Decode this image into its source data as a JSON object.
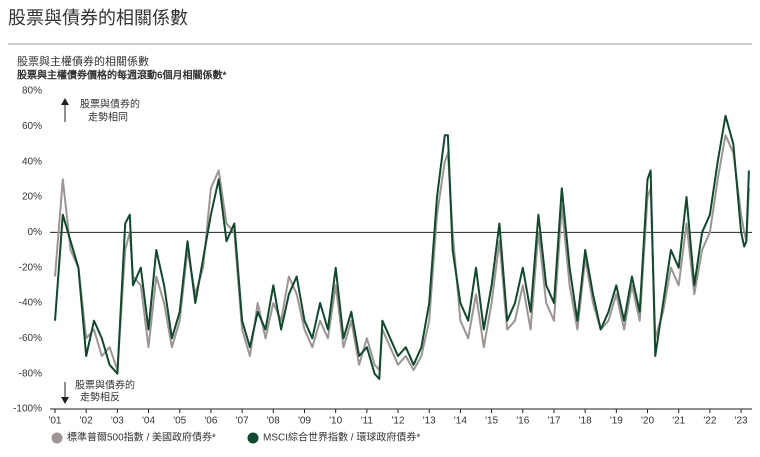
{
  "chart_data": {
    "type": "line",
    "title": "股票與債券的相關係數",
    "subtitle": "股票與主權債券的相關係數",
    "subtitle2": "股票與主權債券價格的每週滾動6個月相關係數*",
    "annotations": [
      "股票與債券的",
      "走勢相同",
      "股票與債券的",
      "走勢相反"
    ],
    "x": [
      2001,
      2001.25,
      2001.5,
      2001.75,
      2002,
      2002.25,
      2002.5,
      2002.75,
      2003,
      2003.25,
      2003.4,
      2003.5,
      2003.75,
      2004,
      2004.25,
      2004.5,
      2004.75,
      2005,
      2005.25,
      2005.5,
      2005.75,
      2006,
      2006.25,
      2006.5,
      2006.75,
      2007,
      2007.25,
      2007.5,
      2007.75,
      2008,
      2008.25,
      2008.5,
      2008.75,
      2009,
      2009.25,
      2009.5,
      2009.75,
      2010,
      2010.25,
      2010.5,
      2010.75,
      2011,
      2011.25,
      2011.4,
      2011.5,
      2011.75,
      2012,
      2012.25,
      2012.5,
      2012.75,
      2013,
      2013.25,
      2013.5,
      2013.6,
      2013.75,
      2014,
      2014.25,
      2014.5,
      2014.75,
      2015,
      2015.25,
      2015.5,
      2015.75,
      2016,
      2016.25,
      2016.5,
      2016.75,
      2017,
      2017.25,
      2017.5,
      2017.75,
      2018,
      2018.25,
      2018.5,
      2018.75,
      2019,
      2019.25,
      2019.5,
      2019.75,
      2020,
      2020.1,
      2020.25,
      2020.5,
      2020.75,
      2021,
      2021.25,
      2021.5,
      2021.75,
      2022,
      2022.25,
      2022.5,
      2022.75,
      2023,
      2023.1,
      2023.17,
      2023.25
    ],
    "series": [
      {
        "name": "標準普爾500指數 / 美國政府債券*",
        "color": "#9d9593",
        "values": [
          -25,
          30,
          -10,
          -20,
          -60,
          -55,
          -70,
          -65,
          -78,
          -10,
          0,
          -25,
          -30,
          -65,
          -25,
          -40,
          -65,
          -50,
          -10,
          -35,
          -20,
          25,
          35,
          5,
          0,
          -55,
          -70,
          -40,
          -60,
          -40,
          -50,
          -25,
          -35,
          -55,
          -65,
          -50,
          -60,
          -30,
          -65,
          -50,
          -75,
          -60,
          -75,
          -78,
          -55,
          -65,
          -75,
          -70,
          -78,
          -70,
          -50,
          10,
          40,
          45,
          0,
          -50,
          -60,
          -35,
          -65,
          -40,
          -5,
          -55,
          -50,
          -30,
          -55,
          0,
          -40,
          -50,
          15,
          -30,
          -55,
          -15,
          -40,
          -55,
          -50,
          -35,
          -55,
          -30,
          -50,
          20,
          25,
          -60,
          -45,
          -20,
          -30,
          5,
          -35,
          -10,
          0,
          30,
          55,
          45,
          10,
          0,
          -5,
          25
        ]
      },
      {
        "name": "MSCI綜合世界指數 / 環球政府債券*",
        "color": "#0e4a2b",
        "values": [
          -50,
          10,
          -5,
          -20,
          -70,
          -50,
          -60,
          -75,
          -80,
          5,
          10,
          -30,
          -20,
          -55,
          -10,
          -30,
          -60,
          -45,
          -5,
          -40,
          -15,
          10,
          30,
          -5,
          5,
          -50,
          -65,
          -45,
          -55,
          -30,
          -55,
          -35,
          -25,
          -50,
          -60,
          -40,
          -55,
          -20,
          -60,
          -45,
          -70,
          -65,
          -80,
          -83,
          -50,
          -60,
          -70,
          -65,
          -75,
          -65,
          -40,
          20,
          55,
          55,
          -10,
          -40,
          -50,
          -20,
          -55,
          -30,
          5,
          -50,
          -40,
          -20,
          -45,
          10,
          -30,
          -40,
          25,
          -20,
          -50,
          -10,
          -35,
          -55,
          -45,
          -30,
          -50,
          -25,
          -45,
          30,
          35,
          -70,
          -40,
          -10,
          -20,
          20,
          -30,
          0,
          10,
          40,
          66,
          50,
          0,
          -8,
          -5,
          35
        ]
      }
    ],
    "xlim": [
      2000.84,
      2023.35
    ],
    "xticks": [
      {
        "value": 2001,
        "label": "'01"
      },
      {
        "value": 2002,
        "label": "'02"
      },
      {
        "value": 2003,
        "label": "'03"
      },
      {
        "value": 2004,
        "label": "'04"
      },
      {
        "value": 2005,
        "label": "'05"
      },
      {
        "value": 2006,
        "label": "'06"
      },
      {
        "value": 2007,
        "label": "'07"
      },
      {
        "value": 2008,
        "label": "'08"
      },
      {
        "value": 2009,
        "label": "'09"
      },
      {
        "value": 2010,
        "label": "'10"
      },
      {
        "value": 2011,
        "label": "'11"
      },
      {
        "value": 2012,
        "label": "'12"
      },
      {
        "value": 2013,
        "label": "'13"
      },
      {
        "value": 2014,
        "label": "'14"
      },
      {
        "value": 2015,
        "label": "'15"
      },
      {
        "value": 2016,
        "label": "'16"
      },
      {
        "value": 2017,
        "label": "'17"
      },
      {
        "value": 2018,
        "label": "'18"
      },
      {
        "value": 2019,
        "label": "'19"
      },
      {
        "value": 2020,
        "label": "'20"
      },
      {
        "value": 2021,
        "label": "'21"
      },
      {
        "value": 2022,
        "label": "'22"
      },
      {
        "value": 2023,
        "label": "'23"
      }
    ],
    "ylim": [
      -100,
      80
    ],
    "yticks": [
      {
        "value": -100,
        "label": "-100%"
      },
      {
        "value": -80,
        "label": "-80%"
      },
      {
        "value": -60,
        "label": "-60%"
      },
      {
        "value": -40,
        "label": "-40%"
      },
      {
        "value": -20,
        "label": "-20%"
      },
      {
        "value": 0,
        "label": "0%"
      },
      {
        "value": 20,
        "label": "20%"
      },
      {
        "value": 40,
        "label": "40%"
      },
      {
        "value": 60,
        "label": "60%"
      },
      {
        "value": 80,
        "label": "80%"
      }
    ],
    "grid": false
  }
}
